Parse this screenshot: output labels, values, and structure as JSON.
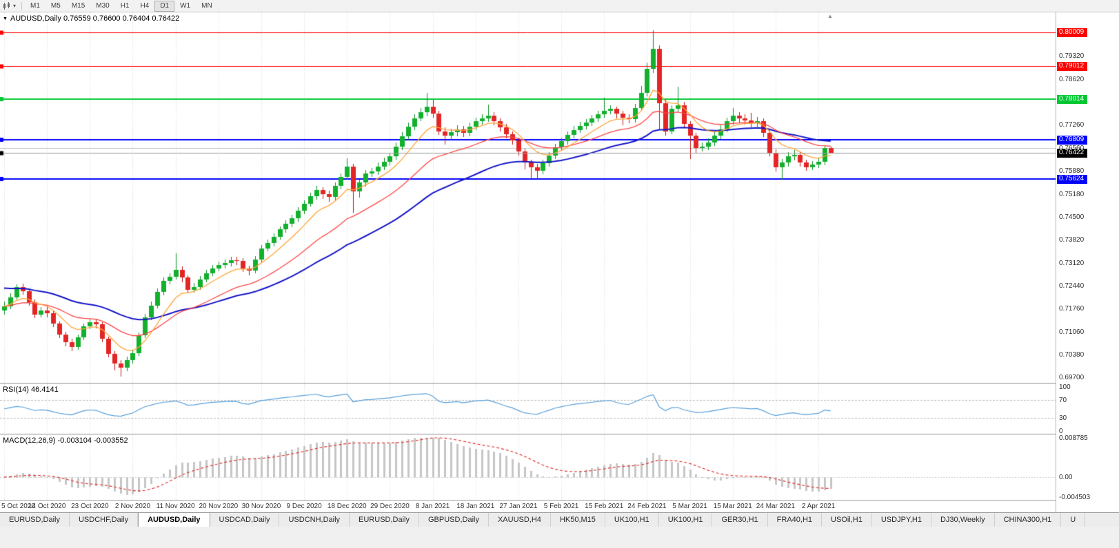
{
  "toolbar": {
    "caret_glyph": "▾",
    "timeframes": [
      {
        "label": "M1",
        "active": false
      },
      {
        "label": "M5",
        "active": false
      },
      {
        "label": "M15",
        "active": false
      },
      {
        "label": "M30",
        "active": false
      },
      {
        "label": "H1",
        "active": false
      },
      {
        "label": "H4",
        "active": false
      },
      {
        "label": "D1",
        "active": true
      },
      {
        "label": "W1",
        "active": false
      },
      {
        "label": "MN",
        "active": false
      }
    ]
  },
  "chart_header": {
    "collapse_glyph": "▼",
    "symbol": "AUDUSD,Daily",
    "ohlc": "0.76559 0.76600 0.76404 0.76422"
  },
  "shift_marker_glyph": "▲",
  "rsi_panel": {
    "title": "RSI(14)",
    "value": "46.4141",
    "axis": [
      "100",
      "70",
      "30",
      "0"
    ],
    "levels": [
      70,
      30
    ],
    "line_color": "#569fdb"
  },
  "macd_panel": {
    "title": "MACD(12,26,9)",
    "values": "-0.003104 -0.003552",
    "axis": [
      "0.008785",
      "0.00",
      "-0.004503"
    ],
    "scale_max": 0.008785,
    "scale_min": -0.004503,
    "histogram_color": "#c6c6c6",
    "signal_color": "#e03030"
  },
  "price_axis": {
    "bid_badge": {
      "value": 0.76422,
      "label": "0.76422",
      "color": "#000000"
    }
  },
  "tabs": [
    {
      "label": "EURUSD,Daily",
      "active": false
    },
    {
      "label": "USDCHF,Daily",
      "active": false
    },
    {
      "label": "AUDUSD,Daily",
      "active": true
    },
    {
      "label": "USDCAD,Daily",
      "active": false
    },
    {
      "label": "USDCNH,Daily",
      "active": false
    },
    {
      "label": "EURUSD,Daily",
      "active": false
    },
    {
      "label": "GBPUSD,Daily",
      "active": false
    },
    {
      "label": "XAUUSD,H4",
      "active": false
    },
    {
      "label": "HK50,M15",
      "active": false
    },
    {
      "label": "UK100,H1",
      "active": false
    },
    {
      "label": "UK100,H1",
      "active": false
    },
    {
      "label": "GER30,H1",
      "active": false
    },
    {
      "label": "FRA40,H1",
      "active": false
    },
    {
      "label": "USOil,H1",
      "active": false
    },
    {
      "label": "USDJPY,H1",
      "active": false
    },
    {
      "label": "DJ30,Weekly",
      "active": false
    },
    {
      "label": "CHINA300,H1",
      "active": false
    },
    {
      "label": "U",
      "active": false
    }
  ],
  "chart_data": {
    "type": "candlestick",
    "symbol": "AUDUSD",
    "timeframe": "Daily",
    "title": "AUDUSD,Daily",
    "current_ohlc": {
      "open": 0.76559,
      "high": 0.766,
      "low": 0.76404,
      "close": 0.76422
    },
    "y_axis": {
      "min": 0.6954,
      "max": 0.8061,
      "tick_labels": [
        "0.79320",
        "0.78620",
        "0.77940",
        "0.77260",
        "0.76560",
        "0.75880",
        "0.75180",
        "0.74500",
        "0.73820",
        "0.73120",
        "0.72440",
        "0.71760",
        "0.71060",
        "0.70380",
        "0.69700"
      ]
    },
    "x_tick_labels": [
      "5 Oct 2020",
      "14 Oct 2020",
      "23 Oct 2020",
      "2 Nov 2020",
      "11 Nov 2020",
      "20 Nov 2020",
      "30 Nov 2020",
      "9 Dec 2020",
      "18 Dec 2020",
      "29 Dec 2020",
      "8 Jan 2021",
      "18 Jan 2021",
      "27 Jan 2021",
      "5 Feb 2021",
      "15 Feb 2021",
      "24 Feb 2021",
      "5 Mar 2021",
      "15 Mar 2021",
      "24 Mar 2021",
      "2 Apr 2021"
    ],
    "candles_per_tick": 7,
    "horizontal_levels": [
      {
        "name": "resistance-1",
        "value": 0.80009,
        "label": "0.80009",
        "color": "#ff0000",
        "width": 1
      },
      {
        "name": "resistance-2",
        "value": 0.79012,
        "label": "0.79012",
        "color": "#ff0000",
        "width": 1
      },
      {
        "name": "resistance-3",
        "value": 0.78014,
        "label": "0.78014",
        "color": "#00c832",
        "width": 2
      },
      {
        "name": "support-1",
        "value": 0.76809,
        "label": "0.76809",
        "color": "#0000ff",
        "width": 2
      },
      {
        "name": "support-2",
        "value": 0.75624,
        "label": "0.75624",
        "color": "#0000ff",
        "width": 2
      },
      {
        "name": "gray-line",
        "value": 0.7656,
        "label": "",
        "color": "#c4c4c4",
        "width": 1
      }
    ],
    "moving_averages": [
      {
        "name": "ma-fast",
        "type": "ema",
        "period": 8,
        "color": "#ffa538",
        "width": 1.3
      },
      {
        "name": "ma-mid",
        "type": "ema",
        "period": 21,
        "color": "#ff4545",
        "width": 1.3
      },
      {
        "name": "ma-slow",
        "type": "ema",
        "period": 40,
        "color": "#1515c8",
        "width": 2,
        "seed": 0.724
      }
    ],
    "indicators": [
      {
        "name": "RSI",
        "period": 14,
        "current": 46.4141
      },
      {
        "name": "MACD",
        "fast": 12,
        "slow": 26,
        "signal_period": 9,
        "current_macd": -0.003104,
        "current_signal": -0.003552
      }
    ],
    "candles": [
      [
        0.717,
        0.7196,
        0.7158,
        0.7182
      ],
      [
        0.7182,
        0.7222,
        0.7174,
        0.721
      ],
      [
        0.721,
        0.7248,
        0.7202,
        0.724
      ],
      [
        0.724,
        0.7251,
        0.7218,
        0.7228
      ],
      [
        0.7228,
        0.7236,
        0.7185,
        0.7195
      ],
      [
        0.7195,
        0.7204,
        0.7148,
        0.7158
      ],
      [
        0.7158,
        0.7181,
        0.715,
        0.717
      ],
      [
        0.717,
        0.718,
        0.715,
        0.7162
      ],
      [
        0.7162,
        0.717,
        0.712,
        0.713
      ],
      [
        0.713,
        0.7138,
        0.7088,
        0.7098
      ],
      [
        0.7098,
        0.7106,
        0.7064,
        0.7075
      ],
      [
        0.7075,
        0.7086,
        0.7049,
        0.706
      ],
      [
        0.706,
        0.7099,
        0.7052,
        0.709
      ],
      [
        0.709,
        0.7131,
        0.7082,
        0.7122
      ],
      [
        0.7122,
        0.7146,
        0.7114,
        0.7135
      ],
      [
        0.7135,
        0.7144,
        0.7117,
        0.7128
      ],
      [
        0.7128,
        0.7135,
        0.7075,
        0.7085
      ],
      [
        0.7085,
        0.7092,
        0.703,
        0.704
      ],
      [
        0.704,
        0.7048,
        0.6991,
        0.7012
      ],
      [
        0.7012,
        0.7022,
        0.6972,
        0.7
      ],
      [
        0.7,
        0.7032,
        0.6988,
        0.7022
      ],
      [
        0.7022,
        0.7052,
        0.7011,
        0.7042
      ],
      [
        0.7042,
        0.7104,
        0.7034,
        0.7095
      ],
      [
        0.7095,
        0.716,
        0.7088,
        0.715
      ],
      [
        0.715,
        0.7196,
        0.7142,
        0.7185
      ],
      [
        0.7185,
        0.7236,
        0.7177,
        0.7225
      ],
      [
        0.7225,
        0.7268,
        0.7216,
        0.7258
      ],
      [
        0.7258,
        0.7282,
        0.7248,
        0.727
      ],
      [
        0.727,
        0.734,
        0.7262,
        0.7292
      ],
      [
        0.7292,
        0.7301,
        0.7255,
        0.7268
      ],
      [
        0.7268,
        0.7276,
        0.7222,
        0.7232
      ],
      [
        0.7232,
        0.7252,
        0.7224,
        0.724
      ],
      [
        0.724,
        0.7272,
        0.7231,
        0.7262
      ],
      [
        0.7262,
        0.7292,
        0.7254,
        0.7281
      ],
      [
        0.7281,
        0.7306,
        0.7272,
        0.7296
      ],
      [
        0.7296,
        0.7316,
        0.7287,
        0.7305
      ],
      [
        0.7305,
        0.7323,
        0.7296,
        0.7312
      ],
      [
        0.7312,
        0.7331,
        0.7302,
        0.732
      ],
      [
        0.732,
        0.733,
        0.7306,
        0.7318
      ],
      [
        0.7318,
        0.7326,
        0.7285,
        0.7295
      ],
      [
        0.7295,
        0.7304,
        0.7276,
        0.729
      ],
      [
        0.729,
        0.7332,
        0.7282,
        0.7322
      ],
      [
        0.7322,
        0.7366,
        0.7314,
        0.7355
      ],
      [
        0.7355,
        0.7383,
        0.7346,
        0.7372
      ],
      [
        0.7372,
        0.74,
        0.7362,
        0.739
      ],
      [
        0.739,
        0.7422,
        0.7381,
        0.7412
      ],
      [
        0.7412,
        0.744,
        0.7402,
        0.743
      ],
      [
        0.743,
        0.7456,
        0.742,
        0.7446
      ],
      [
        0.7446,
        0.7478,
        0.7436,
        0.7468
      ],
      [
        0.7468,
        0.75,
        0.7458,
        0.749
      ],
      [
        0.749,
        0.7522,
        0.748,
        0.7512
      ],
      [
        0.7512,
        0.7543,
        0.7502,
        0.753
      ],
      [
        0.753,
        0.7538,
        0.7504,
        0.7518
      ],
      [
        0.7518,
        0.7528,
        0.7496,
        0.751
      ],
      [
        0.751,
        0.7552,
        0.75,
        0.7542
      ],
      [
        0.7542,
        0.758,
        0.7532,
        0.757
      ],
      [
        0.757,
        0.7624,
        0.756,
        0.76
      ],
      [
        0.76,
        0.7608,
        0.7462,
        0.7526
      ],
      [
        0.7526,
        0.7562,
        0.7508,
        0.7552
      ],
      [
        0.7552,
        0.759,
        0.754,
        0.758
      ],
      [
        0.758,
        0.7596,
        0.757,
        0.7585
      ],
      [
        0.7585,
        0.7612,
        0.7576,
        0.76
      ],
      [
        0.76,
        0.7626,
        0.759,
        0.7615
      ],
      [
        0.7615,
        0.764,
        0.7604,
        0.763
      ],
      [
        0.763,
        0.7672,
        0.762,
        0.766
      ],
      [
        0.766,
        0.7702,
        0.765,
        0.769
      ],
      [
        0.769,
        0.7732,
        0.768,
        0.772
      ],
      [
        0.772,
        0.7757,
        0.771,
        0.7745
      ],
      [
        0.7745,
        0.7775,
        0.7735,
        0.7762
      ],
      [
        0.7762,
        0.782,
        0.775,
        0.778
      ],
      [
        0.778,
        0.78,
        0.7746,
        0.7758
      ],
      [
        0.7758,
        0.7766,
        0.7694,
        0.7706
      ],
      [
        0.7706,
        0.7718,
        0.7666,
        0.7692
      ],
      [
        0.7692,
        0.7713,
        0.768,
        0.7702
      ],
      [
        0.7702,
        0.7724,
        0.7691,
        0.7712
      ],
      [
        0.7712,
        0.7722,
        0.7688,
        0.77
      ],
      [
        0.77,
        0.7731,
        0.769,
        0.772
      ],
      [
        0.772,
        0.7747,
        0.771,
        0.7736
      ],
      [
        0.7736,
        0.7757,
        0.7726,
        0.7744
      ],
      [
        0.7744,
        0.7786,
        0.7734,
        0.7752
      ],
      [
        0.7752,
        0.7762,
        0.7724,
        0.7736
      ],
      [
        0.7736,
        0.7745,
        0.7706,
        0.7718
      ],
      [
        0.7718,
        0.7727,
        0.7684,
        0.7696
      ],
      [
        0.7696,
        0.7706,
        0.7666,
        0.7678
      ],
      [
        0.7678,
        0.7687,
        0.7634,
        0.7645
      ],
      [
        0.7645,
        0.7653,
        0.7592,
        0.7612
      ],
      [
        0.7612,
        0.7621,
        0.7564,
        0.7598
      ],
      [
        0.7598,
        0.7609,
        0.7563,
        0.7588
      ],
      [
        0.7588,
        0.7621,
        0.7578,
        0.761
      ],
      [
        0.761,
        0.7643,
        0.76,
        0.7632
      ],
      [
        0.7632,
        0.7669,
        0.7622,
        0.7658
      ],
      [
        0.7658,
        0.7687,
        0.7648,
        0.7676
      ],
      [
        0.7676,
        0.7705,
        0.7666,
        0.7694
      ],
      [
        0.7694,
        0.7721,
        0.7684,
        0.771
      ],
      [
        0.771,
        0.7733,
        0.77,
        0.7722
      ],
      [
        0.7722,
        0.7743,
        0.7712,
        0.7731
      ],
      [
        0.7731,
        0.7755,
        0.7721,
        0.7744
      ],
      [
        0.7744,
        0.7767,
        0.7734,
        0.7756
      ],
      [
        0.7756,
        0.7805,
        0.7746,
        0.7766
      ],
      [
        0.7766,
        0.7783,
        0.7756,
        0.7772
      ],
      [
        0.7772,
        0.778,
        0.7744,
        0.7758
      ],
      [
        0.7758,
        0.7767,
        0.7724,
        0.7746
      ],
      [
        0.7746,
        0.7757,
        0.773,
        0.7742
      ],
      [
        0.7742,
        0.7787,
        0.7732,
        0.7776
      ],
      [
        0.7776,
        0.784,
        0.7766,
        0.782
      ],
      [
        0.782,
        0.791,
        0.781,
        0.7892
      ],
      [
        0.7892,
        0.8007,
        0.788,
        0.7952
      ],
      [
        0.7952,
        0.7962,
        0.771,
        0.779
      ],
      [
        0.779,
        0.78,
        0.7692,
        0.7706
      ],
      [
        0.7706,
        0.7784,
        0.7696,
        0.7772
      ],
      [
        0.7772,
        0.7838,
        0.7762,
        0.7784
      ],
      [
        0.7784,
        0.7794,
        0.7715,
        0.7727
      ],
      [
        0.7727,
        0.7736,
        0.7622,
        0.7692
      ],
      [
        0.7692,
        0.7701,
        0.764,
        0.7656
      ],
      [
        0.7656,
        0.7673,
        0.7645,
        0.766
      ],
      [
        0.766,
        0.7685,
        0.765,
        0.7672
      ],
      [
        0.7672,
        0.7703,
        0.7662,
        0.7692
      ],
      [
        0.7692,
        0.7723,
        0.7682,
        0.7712
      ],
      [
        0.7712,
        0.7746,
        0.7702,
        0.7735
      ],
      [
        0.7735,
        0.7775,
        0.7725,
        0.7752
      ],
      [
        0.7752,
        0.7763,
        0.7732,
        0.7745
      ],
      [
        0.7745,
        0.7757,
        0.7726,
        0.7738
      ],
      [
        0.7738,
        0.776,
        0.7718,
        0.773
      ],
      [
        0.773,
        0.7749,
        0.772,
        0.7736
      ],
      [
        0.7736,
        0.7745,
        0.7688,
        0.77
      ],
      [
        0.77,
        0.7709,
        0.763,
        0.7642
      ],
      [
        0.7642,
        0.7651,
        0.7585,
        0.7598
      ],
      [
        0.7598,
        0.7623,
        0.7562,
        0.7612
      ],
      [
        0.7612,
        0.7643,
        0.76,
        0.763
      ],
      [
        0.763,
        0.7649,
        0.7618,
        0.7636
      ],
      [
        0.7636,
        0.7645,
        0.76,
        0.7612
      ],
      [
        0.7612,
        0.7621,
        0.7588,
        0.7598
      ],
      [
        0.7598,
        0.7617,
        0.759,
        0.7606
      ],
      [
        0.7606,
        0.7627,
        0.7596,
        0.7614
      ],
      [
        0.7614,
        0.7664,
        0.7604,
        0.7656
      ],
      [
        0.76559,
        0.766,
        0.76404,
        0.76422
      ]
    ]
  }
}
